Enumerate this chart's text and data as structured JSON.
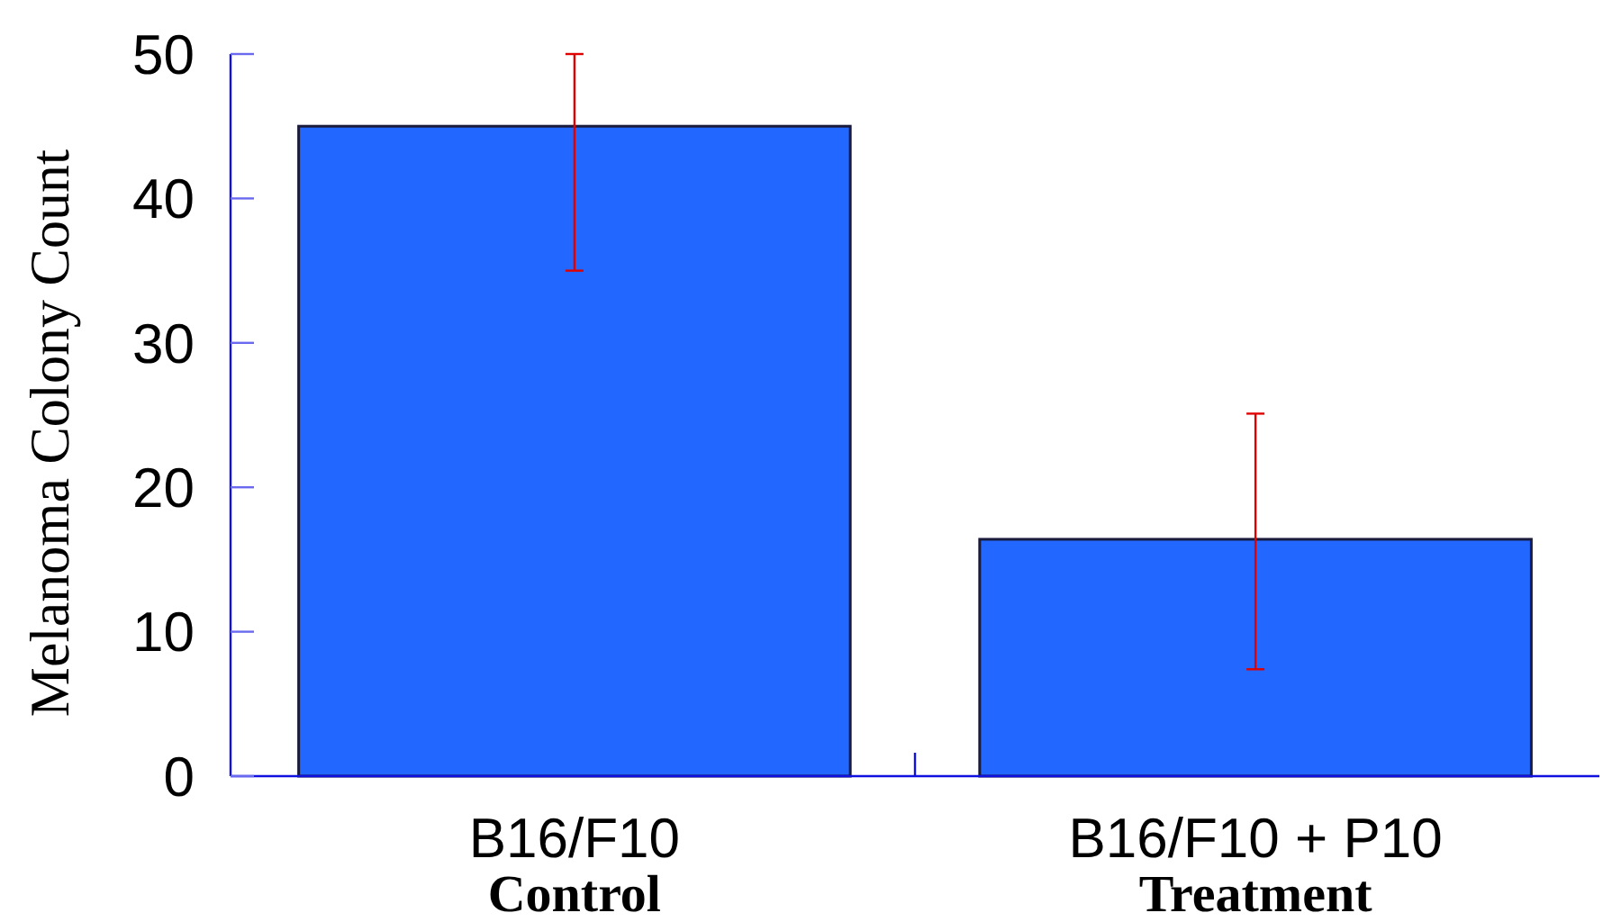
{
  "chart_data": {
    "type": "bar",
    "ylabel": "Melanoma Colony Count",
    "categories": [
      "B16/F10\nControl",
      "B16/F10 + P10\nTreatment"
    ],
    "values": [
      45,
      16.4
    ],
    "color": "#2267ff",
    "errors": [
      [
        35,
        50
      ],
      [
        7.4,
        25.1
      ]
    ],
    "ylim": [
      0,
      50
    ],
    "yticks": [
      0,
      10,
      20,
      30,
      40,
      50
    ],
    "grid": false
  }
}
